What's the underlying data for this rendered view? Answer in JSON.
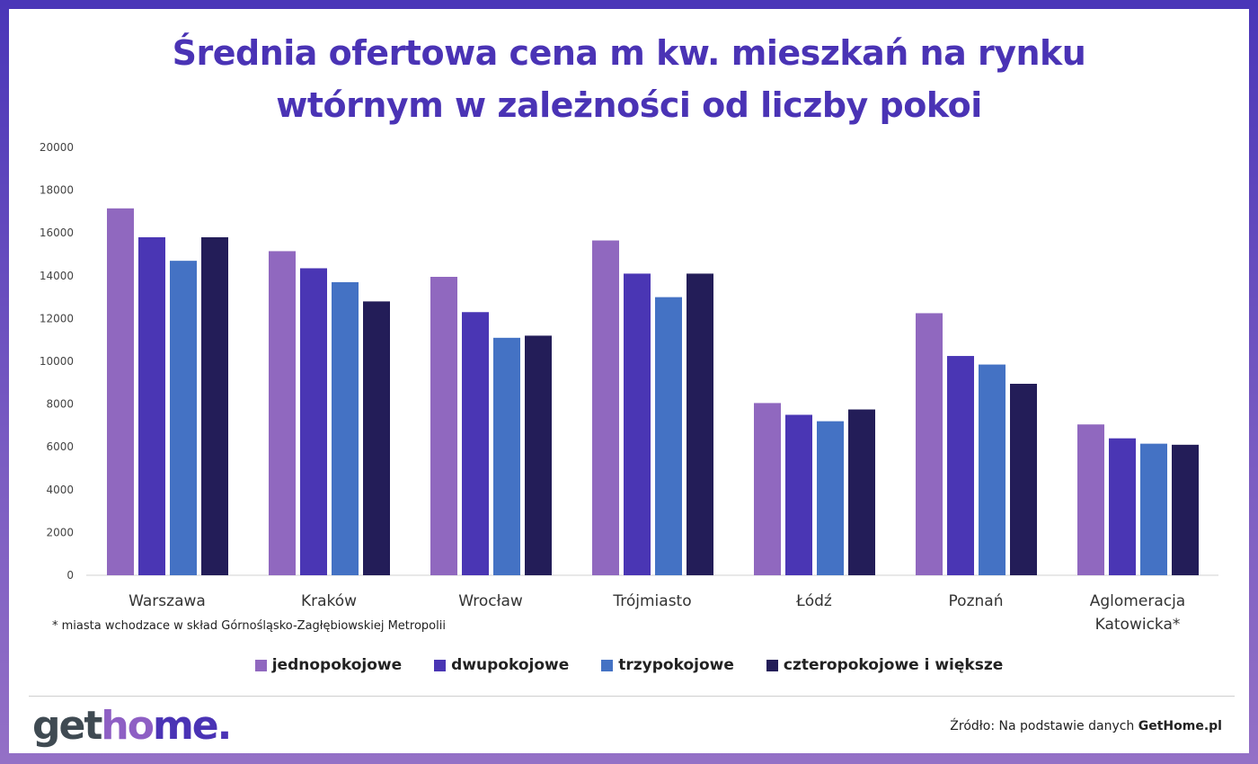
{
  "title": "Średnia ofertowa cena m kw. mieszkań na rynku wtórnym w zależności od liczby pokoi",
  "note": "* miasta wchodzace w skład Górnośląsko-Zagłębiowskiej Metropolii",
  "logo": {
    "part1": "get",
    "part2": "ho",
    "part3": "me."
  },
  "source": {
    "prefix": "Źródło: Na podstawie danych ",
    "brand": "GetHome.pl"
  },
  "colors": {
    "jednopokojowe": "#9068bf",
    "dwupokojowe": "#4a36b4",
    "trzypokojowe": "#4472c4",
    "czteropokojowe": "#231d58"
  },
  "chart_data": {
    "type": "bar",
    "title": "Średnia ofertowa cena m kw. mieszkań na rynku wtórnym w zależności od liczby pokoi",
    "categories": [
      "Warszawa",
      "Kraków",
      "Wrocław",
      "Trójmiasto",
      "Łódź",
      "Poznań",
      "Aglomeracja Katowicka*"
    ],
    "series": [
      {
        "name": "jednopokojowe",
        "color": "#9068bf",
        "values": [
          17150,
          15150,
          13950,
          15650,
          8050,
          12250,
          7050
        ]
      },
      {
        "name": "dwupokojowe",
        "color": "#4a36b4",
        "values": [
          15800,
          14350,
          12300,
          14100,
          7500,
          10250,
          6400
        ]
      },
      {
        "name": "trzypokojowe",
        "color": "#4472c4",
        "values": [
          14700,
          13700,
          11100,
          13000,
          7200,
          9850,
          6150
        ]
      },
      {
        "name": "czteropokojowe i większe",
        "color": "#231d58",
        "values": [
          15800,
          12800,
          11200,
          14100,
          7750,
          8950,
          6100
        ]
      }
    ],
    "ylim": [
      0,
      20000
    ],
    "yticks": [
      "0",
      "2000",
      "4000",
      "6000",
      "8000",
      "10000",
      "12000",
      "14000",
      "16000",
      "18000",
      "20000"
    ],
    "grid": false,
    "legend": "bottom"
  }
}
